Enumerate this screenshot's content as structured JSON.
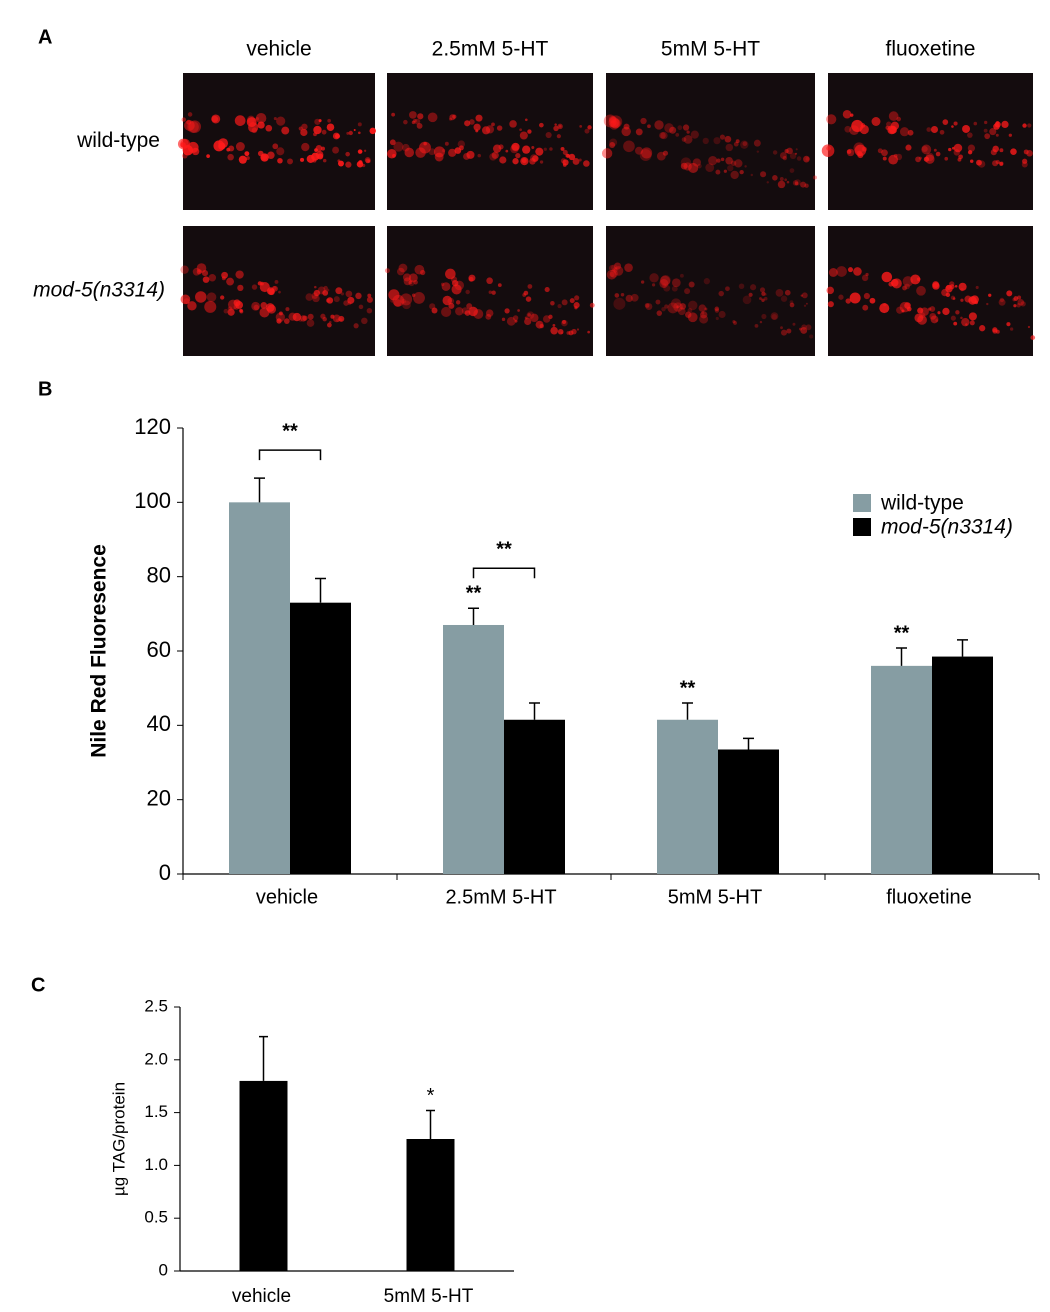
{
  "panel_a": {
    "label": "A",
    "columns": [
      "vehicle",
      "2.5mM 5-HT",
      "5mM 5-HT",
      "fluoxetine"
    ],
    "rows": [
      "wild-type",
      "mod-5(n3314)"
    ]
  },
  "chart_data": [
    {
      "type": "bar",
      "label": "B",
      "ylabel": "Nile Red Fluoresence",
      "categories": [
        "vehicle",
        "2.5mM 5-HT",
        "5mM 5-HT",
        "fluoxetine"
      ],
      "series": [
        {
          "name": "wild-type",
          "color": "#869da3",
          "values": [
            100,
            67,
            41.5,
            56
          ],
          "errors": [
            6.5,
            4.5,
            4.5,
            4.8
          ],
          "markers": [
            null,
            "**",
            "**",
            "**"
          ]
        },
        {
          "name": "mod-5(n3314)",
          "color": "#000000",
          "values": [
            73,
            41.5,
            33.5,
            58.5
          ],
          "errors": [
            6.5,
            4.5,
            3,
            4.5
          ],
          "markers": [
            null,
            null,
            null,
            null
          ]
        }
      ],
      "bracket_labels": [
        "**",
        "**",
        null,
        null
      ],
      "ylim": [
        0,
        120
      ],
      "yticks": [
        0,
        20,
        40,
        60,
        80,
        100,
        120
      ],
      "legend": "upper-right"
    },
    {
      "type": "bar",
      "label": "C",
      "ylabel": "µg TAG/protein",
      "categories": [
        "vehicle",
        "5mM 5-HT"
      ],
      "series": [
        {
          "color": "#000000",
          "values": [
            1.8,
            1.25
          ],
          "errors": [
            0.42,
            0.27
          ],
          "markers": [
            null,
            "*"
          ]
        }
      ],
      "ylim": [
        0,
        2.5
      ],
      "yticks": [
        0,
        0.5,
        {
          "value": 1,
          "label": "1.0"
        },
        1.5,
        {
          "value": 2,
          "label": "2.0"
        },
        2.5
      ]
    }
  ]
}
